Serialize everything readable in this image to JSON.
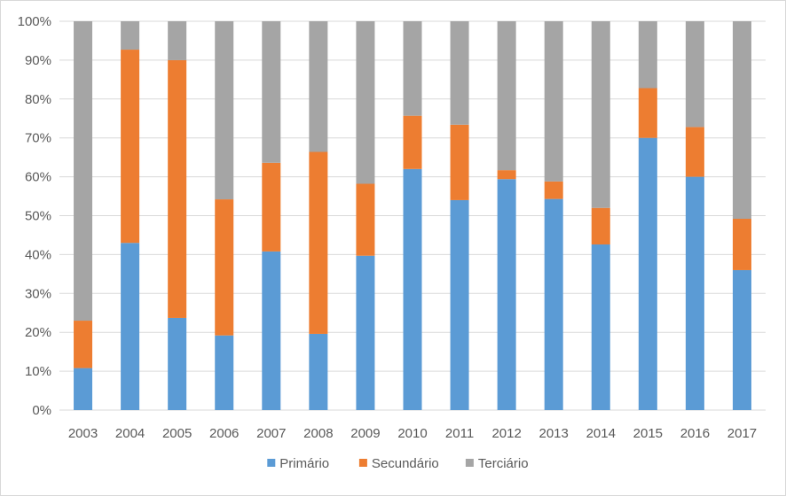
{
  "chart_data": {
    "type": "bar",
    "stacked": true,
    "percent_stacked": true,
    "categories": [
      "2003",
      "2004",
      "2005",
      "2006",
      "2007",
      "2008",
      "2009",
      "2010",
      "2011",
      "2012",
      "2013",
      "2014",
      "2015",
      "2016",
      "2017"
    ],
    "series": [
      {
        "name": "Primário",
        "color": "#5b9bd5",
        "values": [
          10.8,
          43.0,
          23.7,
          19.2,
          40.8,
          19.6,
          39.7,
          62.0,
          54.0,
          59.4,
          54.3,
          42.6,
          70.0,
          60.0,
          36.0
        ]
      },
      {
        "name": "Secundário",
        "color": "#ed7d31",
        "values": [
          12.2,
          49.7,
          66.3,
          35.0,
          22.8,
          46.8,
          18.5,
          13.7,
          19.4,
          2.3,
          4.5,
          9.4,
          12.8,
          12.8,
          13.2
        ]
      },
      {
        "name": "Terciário",
        "color": "#a5a5a5",
        "values": [
          77.0,
          7.3,
          10.0,
          45.8,
          36.4,
          33.6,
          41.8,
          24.3,
          26.6,
          38.3,
          41.2,
          48.0,
          17.2,
          27.2,
          50.8
        ]
      }
    ],
    "y_ticks": [
      "0%",
      "10%",
      "20%",
      "30%",
      "40%",
      "50%",
      "60%",
      "70%",
      "80%",
      "90%",
      "100%"
    ],
    "ylim": [
      0,
      100
    ],
    "grid": true,
    "legend_position": "bottom",
    "gridline_color": "#d9d9d9",
    "title": "",
    "xlabel": "",
    "ylabel": ""
  }
}
